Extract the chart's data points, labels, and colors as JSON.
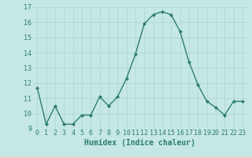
{
  "x": [
    0,
    1,
    2,
    3,
    4,
    5,
    6,
    7,
    8,
    9,
    10,
    11,
    12,
    13,
    14,
    15,
    16,
    17,
    18,
    19,
    20,
    21,
    22,
    23
  ],
  "y": [
    11.7,
    9.3,
    10.5,
    9.3,
    9.3,
    9.9,
    9.9,
    11.1,
    10.5,
    11.1,
    12.3,
    13.9,
    15.9,
    16.5,
    16.7,
    16.5,
    15.4,
    13.4,
    11.9,
    10.8,
    10.4,
    9.9,
    10.8,
    10.8
  ],
  "line_color": "#2e7d6e",
  "marker": "D",
  "markersize": 2,
  "linewidth": 1.0,
  "bg_color": "#c5e8e5",
  "grid_color": "#aad4d0",
  "xlabel": "Humidex (Indice chaleur)",
  "ylim": [
    9,
    17
  ],
  "xlim": [
    -0.5,
    23.5
  ],
  "yticks": [
    9,
    10,
    11,
    12,
    13,
    14,
    15,
    16,
    17
  ],
  "xtick_labels": [
    "0",
    "1",
    "2",
    "3",
    "4",
    "5",
    "6",
    "7",
    "8",
    "9",
    "10",
    "11",
    "12",
    "13",
    "14",
    "15",
    "16",
    "17",
    "18",
    "19",
    "20",
    "21",
    "22",
    "23"
  ],
  "xlabel_fontsize": 7,
  "tick_fontsize": 6,
  "tick_color": "#2e7d6e",
  "label_color": "#2e7d6e"
}
